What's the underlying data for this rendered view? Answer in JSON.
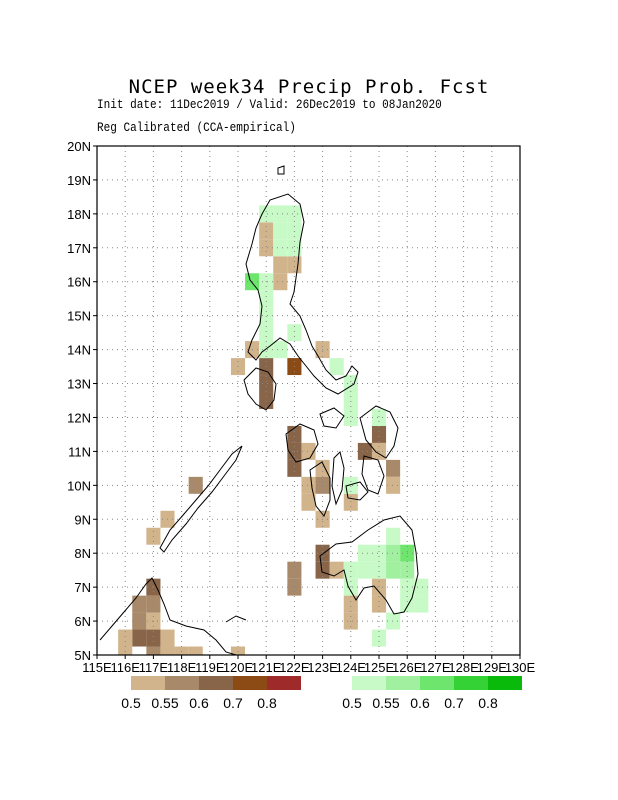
{
  "header": {
    "title": "NCEP week34 Precip Prob. Fcst",
    "subtitle": "Init date: 11Dec2019 / Valid: 26Dec2019 to 08Jan2020",
    "method": "Reg Calibrated (CCA-empirical)"
  },
  "axes": {
    "lon_ticks": [
      "115E",
      "116E",
      "117E",
      "118E",
      "119E",
      "120E",
      "121E",
      "122E",
      "123E",
      "124E",
      "125E",
      "126E",
      "127E",
      "128E",
      "129E",
      "130E"
    ],
    "lat_ticks": [
      "5N",
      "6N",
      "7N",
      "8N",
      "9N",
      "10N",
      "11N",
      "12N",
      "13N",
      "14N",
      "15N",
      "16N",
      "17N",
      "18N",
      "19N",
      "20N"
    ]
  },
  "colorbars": {
    "dry": {
      "colors": [
        "#d2b48c",
        "#a88a6a",
        "#886448",
        "#8c4a14",
        "#9e2a2a"
      ],
      "labels": [
        "0.5",
        "0.55",
        "0.6",
        "0.7",
        "0.8"
      ]
    },
    "wet": {
      "colors": [
        "#c8fac8",
        "#a0f0a0",
        "#6ee66e",
        "#34d234",
        "#0aba0a"
      ],
      "labels": [
        "0.5",
        "0.55",
        "0.6",
        "0.7",
        "0.8"
      ]
    }
  },
  "map_cells": {
    "dry": [
      {
        "lat": 17.5,
        "lon": 121.0,
        "level": 0
      },
      {
        "lat": 17.0,
        "lon": 121.0,
        "level": 0
      },
      {
        "lat": 16.5,
        "lon": 121.5,
        "level": 0
      },
      {
        "lat": 16.5,
        "lon": 122.0,
        "level": 0
      },
      {
        "lat": 16.0,
        "lon": 121.5,
        "level": 0
      },
      {
        "lat": 14.0,
        "lon": 120.5,
        "level": 0
      },
      {
        "lat": 13.5,
        "lon": 120.0,
        "level": 0
      },
      {
        "lat": 14.0,
        "lon": 123.0,
        "level": 0
      },
      {
        "lat": 13.5,
        "lon": 121.0,
        "level": 2
      },
      {
        "lat": 13.0,
        "lon": 121.0,
        "level": 2
      },
      {
        "lat": 12.5,
        "lon": 121.0,
        "level": 2
      },
      {
        "lat": 13.5,
        "lon": 122.0,
        "level": 3
      },
      {
        "lat": 11.5,
        "lon": 122.0,
        "level": 2
      },
      {
        "lat": 11.0,
        "lon": 122.0,
        "level": 2
      },
      {
        "lat": 10.5,
        "lon": 122.0,
        "level": 2
      },
      {
        "lat": 11.0,
        "lon": 122.5,
        "level": 0
      },
      {
        "lat": 10.5,
        "lon": 123.0,
        "level": 0
      },
      {
        "lat": 10.0,
        "lon": 122.5,
        "level": 0
      },
      {
        "lat": 9.5,
        "lon": 122.5,
        "level": 0
      },
      {
        "lat": 9.0,
        "lon": 123.0,
        "level": 0
      },
      {
        "lat": 10.0,
        "lon": 123.0,
        "level": 1
      },
      {
        "lat": 11.5,
        "lon": 125.0,
        "level": 2
      },
      {
        "lat": 11.0,
        "lon": 124.5,
        "level": 2
      },
      {
        "lat": 11.0,
        "lon": 125.0,
        "level": 0
      },
      {
        "lat": 10.5,
        "lon": 125.5,
        "level": 1
      },
      {
        "lat": 10.0,
        "lon": 125.5,
        "level": 0
      },
      {
        "lat": 9.5,
        "lon": 124.0,
        "level": 0
      },
      {
        "lat": 8.0,
        "lon": 123.0,
        "level": 2
      },
      {
        "lat": 7.5,
        "lon": 123.0,
        "level": 2
      },
      {
        "lat": 7.5,
        "lon": 122.0,
        "level": 1
      },
      {
        "lat": 7.0,
        "lon": 122.0,
        "level": 1
      },
      {
        "lat": 7.5,
        "lon": 123.5,
        "level": 0
      },
      {
        "lat": 6.5,
        "lon": 124.0,
        "level": 0
      },
      {
        "lat": 6.0,
        "lon": 124.0,
        "level": 0
      },
      {
        "lat": 7.0,
        "lon": 125.0,
        "level": 0
      },
      {
        "lat": 6.5,
        "lon": 125.0,
        "level": 0
      },
      {
        "lat": 10.0,
        "lon": 118.5,
        "level": 1
      },
      {
        "lat": 9.0,
        "lon": 117.5,
        "level": 0
      },
      {
        "lat": 8.5,
        "lon": 117.0,
        "level": 0
      },
      {
        "lat": 7.0,
        "lon": 117.0,
        "level": 2
      },
      {
        "lat": 6.5,
        "lon": 116.5,
        "level": 1
      },
      {
        "lat": 6.0,
        "lon": 116.5,
        "level": 1
      },
      {
        "lat": 5.5,
        "lon": 116.5,
        "level": 2
      },
      {
        "lat": 5.5,
        "lon": 117.0,
        "level": 2
      },
      {
        "lat": 5.5,
        "lon": 116.0,
        "level": 0
      },
      {
        "lat": 5.5,
        "lon": 117.5,
        "level": 0
      },
      {
        "lat": 5.0,
        "lon": 117.0,
        "level": 1
      },
      {
        "lat": 5.0,
        "lon": 117.5,
        "level": 0
      },
      {
        "lat": 5.0,
        "lon": 118.0,
        "level": 0
      },
      {
        "lat": 5.0,
        "lon": 118.5,
        "level": 0
      },
      {
        "lat": 5.0,
        "lon": 116.0,
        "level": 0
      },
      {
        "lat": 5.0,
        "lon": 120.0,
        "level": 0
      },
      {
        "lat": 6.0,
        "lon": 117.0,
        "level": 0
      },
      {
        "lat": 6.5,
        "lon": 117.0,
        "level": 1
      }
    ],
    "wet": [
      {
        "lat": 18.0,
        "lon": 121.0,
        "level": 0
      },
      {
        "lat": 18.0,
        "lon": 121.5,
        "level": 0
      },
      {
        "lat": 18.0,
        "lon": 122.0,
        "level": 0
      },
      {
        "lat": 17.5,
        "lon": 121.5,
        "level": 0
      },
      {
        "lat": 17.5,
        "lon": 122.0,
        "level": 0
      },
      {
        "lat": 17.0,
        "lon": 121.5,
        "level": 0
      },
      {
        "lat": 17.0,
        "lon": 122.0,
        "level": 0
      },
      {
        "lat": 16.0,
        "lon": 120.5,
        "level": 2
      },
      {
        "lat": 16.0,
        "lon": 121.0,
        "level": 0
      },
      {
        "lat": 15.5,
        "lon": 121.0,
        "level": 0
      },
      {
        "lat": 15.0,
        "lon": 121.0,
        "level": 0
      },
      {
        "lat": 14.5,
        "lon": 121.0,
        "level": 0
      },
      {
        "lat": 14.5,
        "lon": 122.0,
        "level": 0
      },
      {
        "lat": 14.0,
        "lon": 121.0,
        "level": 0
      },
      {
        "lat": 14.0,
        "lon": 121.5,
        "level": 0
      },
      {
        "lat": 13.5,
        "lon": 123.5,
        "level": 0
      },
      {
        "lat": 13.0,
        "lon": 124.0,
        "level": 0
      },
      {
        "lat": 12.5,
        "lon": 124.0,
        "level": 0
      },
      {
        "lat": 12.0,
        "lon": 125.0,
        "level": 0
      },
      {
        "lat": 12.0,
        "lon": 124.0,
        "level": 0
      },
      {
        "lat": 10.0,
        "lon": 124.0,
        "level": 0
      },
      {
        "lat": 8.5,
        "lon": 125.5,
        "level": 0
      },
      {
        "lat": 8.0,
        "lon": 124.5,
        "level": 0
      },
      {
        "lat": 8.0,
        "lon": 125.0,
        "level": 0
      },
      {
        "lat": 8.0,
        "lon": 125.5,
        "level": 1
      },
      {
        "lat": 8.0,
        "lon": 126.0,
        "level": 2
      },
      {
        "lat": 7.5,
        "lon": 124.0,
        "level": 0
      },
      {
        "lat": 7.5,
        "lon": 124.5,
        "level": 0
      },
      {
        "lat": 7.5,
        "lon": 125.0,
        "level": 0
      },
      {
        "lat": 7.5,
        "lon": 125.5,
        "level": 1
      },
      {
        "lat": 7.5,
        "lon": 126.0,
        "level": 1
      },
      {
        "lat": 7.0,
        "lon": 126.0,
        "level": 0
      },
      {
        "lat": 7.0,
        "lon": 126.5,
        "level": 0
      },
      {
        "lat": 6.5,
        "lon": 126.0,
        "level": 0
      },
      {
        "lat": 6.5,
        "lon": 126.5,
        "level": 0
      },
      {
        "lat": 6.0,
        "lon": 125.5,
        "level": 0
      },
      {
        "lat": 5.5,
        "lon": 125.0,
        "level": 0
      },
      {
        "lat": 7.0,
        "lon": 124.0,
        "level": 0
      }
    ]
  }
}
